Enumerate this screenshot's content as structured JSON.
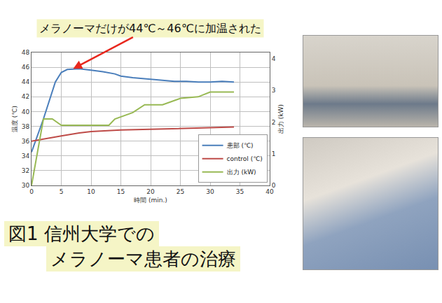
{
  "chart_data": {
    "type": "line",
    "x_label": "時間 (min.)",
    "y_label": "温度 (℃)",
    "y2_label": "出力 (kW)",
    "xlim": [
      0,
      40
    ],
    "xticks": [
      0,
      5,
      10,
      15,
      20,
      25,
      30,
      35,
      40
    ],
    "ylim": [
      30,
      48
    ],
    "yticks": [
      30,
      32,
      34,
      36,
      38,
      40,
      42,
      44,
      46,
      48
    ],
    "y2lim": [
      0,
      4.2
    ],
    "y2ticks": [
      0,
      1,
      2,
      3,
      4
    ],
    "grid": true,
    "legend": "lower right",
    "series": [
      {
        "name": "患部 (℃)",
        "color": "#4a7ebb",
        "x": [
          0,
          2,
          4,
          5,
          6,
          8,
          10,
          12,
          14,
          15,
          17,
          20,
          22,
          24,
          26,
          28,
          30,
          32,
          34
        ],
        "values": [
          34.5,
          39.0,
          44.0,
          45.3,
          45.7,
          45.8,
          45.6,
          45.4,
          45.1,
          44.8,
          44.6,
          44.4,
          44.3,
          44.1,
          44.1,
          44.0,
          44.0,
          44.1,
          44.0
        ]
      },
      {
        "name": "control (℃)",
        "color": "#be4b48",
        "x": [
          0,
          2,
          5,
          8,
          10,
          15,
          20,
          25,
          30,
          34
        ],
        "values": [
          36.0,
          36.3,
          36.7,
          37.1,
          37.3,
          37.5,
          37.6,
          37.7,
          37.8,
          37.9
        ]
      },
      {
        "name": "出力 (kW)",
        "color": "#98b954",
        "axis": "y2",
        "x": [
          0,
          2,
          3.5,
          5,
          13,
          14,
          17,
          19,
          22,
          25,
          28,
          30,
          34
        ],
        "values": [
          0,
          2.1,
          2.1,
          1.9,
          1.9,
          2.1,
          2.3,
          2.55,
          2.55,
          2.75,
          2.8,
          2.95,
          2.95
        ]
      }
    ],
    "annotations": [
      {
        "text": "メラノーマだけが44℃～46℃に加温された",
        "x": 7,
        "y": 45.8
      }
    ]
  },
  "caption": [
    "図1 信州大学での",
    "メラノーマ患者の治療"
  ]
}
